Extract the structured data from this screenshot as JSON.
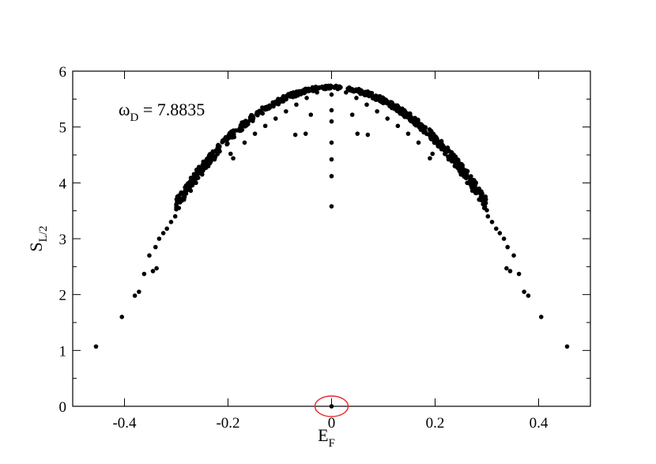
{
  "chart_data": {
    "type": "scatter",
    "title": "",
    "xlabel": {
      "main": "E",
      "sub": "F"
    },
    "ylabel": {
      "main": "S",
      "sub": "L/2"
    },
    "annotation": {
      "symbol": "ω",
      "sub": "D",
      "text": " = 7.8835"
    },
    "xlim": [
      -0.5,
      0.5
    ],
    "ylim": [
      0,
      6
    ],
    "xticks": [
      "-0.4",
      "-0.2",
      "0",
      "0.2",
      "0.4"
    ],
    "xtick_values": [
      -0.4,
      -0.2,
      0,
      0.2,
      0.4
    ],
    "yticks": [
      "0",
      "1",
      "2",
      "3",
      "4",
      "5",
      "6"
    ],
    "ytick_values": [
      0,
      1,
      2,
      3,
      4,
      5,
      6
    ],
    "grid": false,
    "marker_color": "#000000",
    "highlight": {
      "x": 0,
      "y": 0,
      "color": "#e8262a"
    },
    "series": [
      {
        "points": [
          [
            -0.455,
            1.07
          ],
          [
            0.455,
            1.07
          ],
          [
            -0.405,
            1.6
          ],
          [
            0.405,
            1.6
          ],
          [
            -0.38,
            1.98
          ],
          [
            0.38,
            1.98
          ],
          [
            -0.372,
            2.05
          ],
          [
            0.372,
            2.05
          ],
          [
            -0.362,
            2.37
          ],
          [
            0.362,
            2.37
          ],
          [
            -0.345,
            2.42
          ],
          [
            0.345,
            2.42
          ],
          [
            -0.338,
            2.47
          ],
          [
            0.338,
            2.47
          ],
          [
            -0.352,
            2.7
          ],
          [
            0.352,
            2.7
          ],
          [
            -0.34,
            2.85
          ],
          [
            0.34,
            2.85
          ],
          [
            -0.333,
            3.0
          ],
          [
            0.333,
            3.0
          ],
          [
            -0.325,
            3.1
          ],
          [
            0.325,
            3.1
          ],
          [
            -0.318,
            3.18
          ],
          [
            0.318,
            3.18
          ],
          [
            -0.31,
            3.3
          ],
          [
            0.31,
            3.3
          ],
          [
            -0.302,
            3.4
          ],
          [
            0.302,
            3.4
          ],
          [
            -0.295,
            3.55
          ],
          [
            0.295,
            3.55
          ],
          [
            -0.285,
            3.7
          ],
          [
            0.285,
            3.7
          ],
          [
            -0.272,
            3.86
          ],
          [
            0.272,
            3.86
          ],
          [
            -0.262,
            4.0
          ],
          [
            0.262,
            4.0
          ],
          [
            -0.25,
            4.15
          ],
          [
            0.25,
            4.15
          ],
          [
            -0.238,
            4.3
          ],
          [
            0.238,
            4.3
          ],
          [
            -0.226,
            4.42
          ],
          [
            0.226,
            4.42
          ],
          [
            -0.195,
            4.52
          ],
          [
            0.195,
            4.52
          ],
          [
            -0.19,
            4.44
          ],
          [
            0.19,
            4.44
          ],
          [
            -0.168,
            4.72
          ],
          [
            0.168,
            4.72
          ],
          [
            -0.148,
            4.88
          ],
          [
            0.148,
            4.88
          ],
          [
            -0.128,
            5.02
          ],
          [
            0.128,
            5.02
          ],
          [
            -0.108,
            5.15
          ],
          [
            0.108,
            5.15
          ],
          [
            -0.088,
            5.28
          ],
          [
            0.088,
            5.28
          ],
          [
            -0.068,
            5.4
          ],
          [
            0.068,
            5.4
          ],
          [
            -0.048,
            5.52
          ],
          [
            0.048,
            5.52
          ],
          [
            -0.028,
            5.62
          ],
          [
            0.028,
            5.62
          ],
          [
            -0.012,
            5.68
          ],
          [
            0.012,
            5.68
          ],
          [
            -0.07,
            4.86
          ],
          [
            0.07,
            4.86
          ],
          [
            -0.05,
            4.88
          ],
          [
            0.05,
            4.88
          ],
          [
            -0.04,
            5.22
          ],
          [
            0.04,
            5.22
          ],
          [
            0.0,
            5.58
          ],
          [
            0.0,
            5.3
          ],
          [
            0.0,
            5.1
          ],
          [
            0.0,
            4.72
          ],
          [
            0.0,
            4.42
          ],
          [
            0.0,
            4.12
          ],
          [
            0.0,
            3.58
          ],
          [
            0.0,
            0.0
          ]
        ]
      }
    ]
  }
}
